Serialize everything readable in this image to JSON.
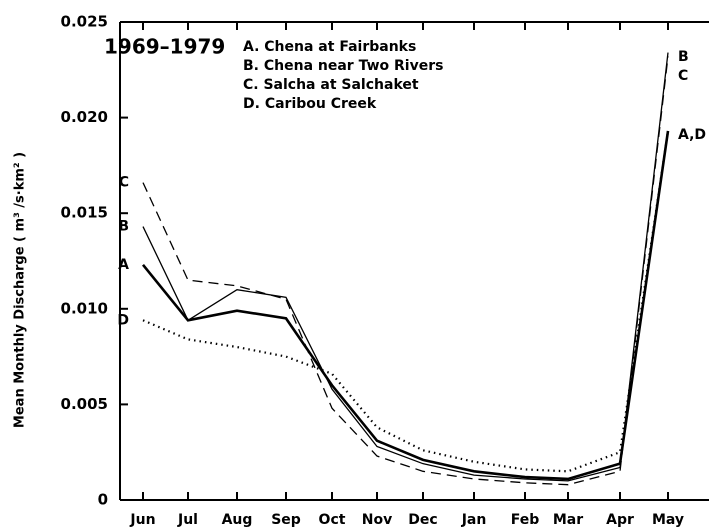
{
  "chart_data": {
    "type": "line",
    "period": "1969–1979",
    "ylabel": "Mean Monthly Discharge ( m³ /s·km² )",
    "categories": [
      "Jun",
      "Jul",
      "Aug",
      "Sep",
      "Oct",
      "Nov",
      "Dec",
      "Jan",
      "Feb",
      "Mar",
      "Apr",
      "May"
    ],
    "ylim": [
      0,
      0.025
    ],
    "yticks": [
      0,
      0.005,
      {
        "value": 0.01,
        "label": "0.010"
      },
      0.015,
      {
        "value": 0.02,
        "label": "0.020"
      },
      0.025
    ],
    "series": [
      {
        "name": "A. Chena at Fairbanks",
        "start_label": "A",
        "color": "#000",
        "width": 2.6,
        "dash": "none",
        "values": [
          0.0123,
          0.0094,
          0.0099,
          0.0095,
          0.006,
          0.0031,
          0.0021,
          0.0015,
          0.0012,
          0.0011,
          0.0019,
          0.0193
        ]
      },
      {
        "name": "B. Chena near Two Rivers",
        "start_label": "B",
        "color": "#000",
        "width": 1.3,
        "dash": "none",
        "values": [
          0.0143,
          0.0094,
          0.011,
          0.0106,
          0.0058,
          0.0028,
          0.0019,
          0.0013,
          0.0011,
          0.001,
          0.0017,
          0.0234
        ]
      },
      {
        "name": "C. Salcha at Salchaket",
        "start_label": "C",
        "color": "#000",
        "width": 1.3,
        "dash": "10 6",
        "values": [
          0.0166,
          0.0115,
          0.0112,
          0.0105,
          0.0048,
          0.0023,
          0.0015,
          0.0011,
          0.0009,
          0.0008,
          0.0015,
          0.0232
        ]
      },
      {
        "name": "D. Caribou Creek",
        "start_label": "D",
        "color": "#000",
        "width": 2.2,
        "dash": "1.5 4",
        "values": [
          0.0094,
          0.0084,
          0.008,
          0.0075,
          0.0066,
          0.0038,
          0.0026,
          0.002,
          0.0016,
          0.0015,
          0.0025,
          0.0193
        ]
      }
    ],
    "end_labels": [
      "B",
      "C",
      "A,D"
    ]
  }
}
